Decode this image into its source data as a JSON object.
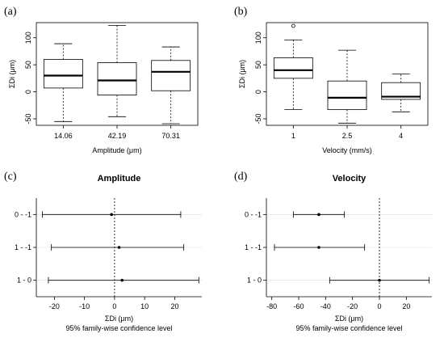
{
  "chart_data": [
    {
      "panel": "(a)",
      "type": "box",
      "title": "",
      "xlabel": "Amplitude (μm)",
      "ylabel": "ΣDi (μm)",
      "ylim": [
        -62,
        128
      ],
      "yticks": [
        -50,
        0,
        50,
        100
      ],
      "categories": [
        "14.06",
        "42.19",
        "70.31"
      ],
      "boxes": [
        {
          "min": -55,
          "q1": 7,
          "median": 30,
          "q3": 60,
          "max": 89,
          "outliers": []
        },
        {
          "min": -46,
          "q1": -6,
          "median": 21,
          "q3": 54,
          "max": 123,
          "outliers": []
        },
        {
          "min": -59,
          "q1": 2,
          "median": 37,
          "q3": 58,
          "max": 83,
          "outliers": []
        }
      ]
    },
    {
      "panel": "(b)",
      "type": "box",
      "title": "",
      "xlabel": "Velocity (mm/s)",
      "ylabel": "ΣDi (μm)",
      "ylim": [
        -62,
        128
      ],
      "yticks": [
        -50,
        0,
        50,
        100
      ],
      "categories": [
        "1",
        "2.5",
        "4"
      ],
      "boxes": [
        {
          "min": -33,
          "q1": 25,
          "median": 40,
          "q3": 63,
          "max": 96,
          "outliers": [
            122
          ]
        },
        {
          "min": -58,
          "q1": -33,
          "median": -11,
          "q3": 20,
          "max": 77,
          "outliers": []
        },
        {
          "min": -37,
          "q1": -14,
          "median": -9,
          "q3": 17,
          "max": 33,
          "outliers": []
        }
      ]
    },
    {
      "panel": "(c)",
      "type": "interval",
      "title": "Amplitude",
      "xlabel": "ΣDi (μm)",
      "subtitle": "95% family-wise confidence level",
      "xlim": [
        -26,
        29
      ],
      "xticks": [
        -20,
        -10,
        0,
        10,
        20
      ],
      "reference": 0,
      "intervals": [
        {
          "label": "0 - -1",
          "estimate": -1,
          "lower": -24,
          "upper": 22
        },
        {
          "label": "1 - -1",
          "estimate": 1.5,
          "lower": -21,
          "upper": 23
        },
        {
          "label": "1 - 0",
          "estimate": 2.5,
          "lower": -22,
          "upper": 28
        }
      ]
    },
    {
      "panel": "(d)",
      "type": "interval",
      "title": "Velocity",
      "xlabel": "ΣDi (μm)",
      "subtitle": "95% family-wise confidence level",
      "xlim": [
        -84,
        39
      ],
      "xticks": [
        -80,
        -60,
        -40,
        -20,
        0,
        20
      ],
      "reference": 0,
      "intervals": [
        {
          "label": "0 - -1",
          "estimate": -45,
          "lower": -64,
          "upper": -26
        },
        {
          "label": "1 - -1",
          "estimate": -45,
          "lower": -78,
          "upper": -11
        },
        {
          "label": "1 - 0",
          "estimate": 0,
          "lower": -37,
          "upper": 37
        }
      ]
    }
  ]
}
